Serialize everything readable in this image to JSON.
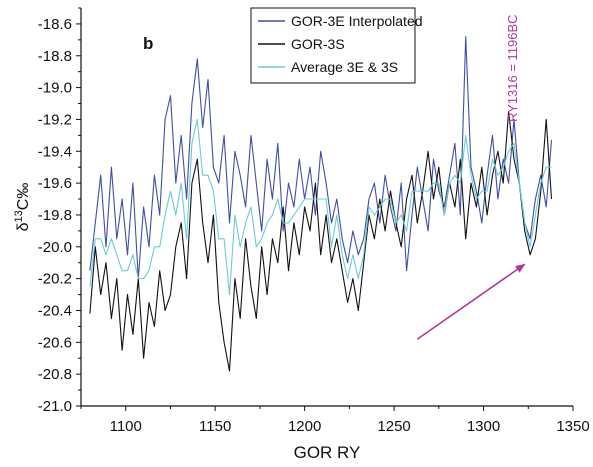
{
  "chart_data": {
    "type": "line",
    "panel_label": "b",
    "xlabel": "GOR RY",
    "ylabel": "δ13C‰",
    "ylabel_parts": {
      "delta": "δ",
      "superscript": "13",
      "rest": "C‰"
    },
    "xlim": [
      1075,
      1350
    ],
    "ylim": [
      -21.0,
      -18.5
    ],
    "x_ticks": [
      1100,
      1150,
      1200,
      1250,
      1300,
      1350
    ],
    "y_ticks": [
      -18.6,
      -18.8,
      -19.0,
      -19.2,
      -19.4,
      -19.6,
      -19.8,
      -20.0,
      -20.2,
      -20.4,
      -20.6,
      -20.8,
      -21.0
    ],
    "grid": false,
    "legend_position": "top-center",
    "annotation": {
      "text": "RY1316 = 1196BC",
      "x": 1316,
      "color": "#b0399a"
    },
    "arrow": {
      "from": [
        1263,
        -20.58
      ],
      "to": [
        1323,
        -20.11
      ],
      "color": "#b0399a"
    },
    "series": [
      {
        "name": "GOR-3E Interpolated",
        "color": "#3f4fa8",
        "x": [
          1080,
          1083,
          1086,
          1089,
          1092,
          1095,
          1098,
          1101,
          1104,
          1107,
          1110,
          1113,
          1116,
          1119,
          1122,
          1125,
          1128,
          1131,
          1134,
          1137,
          1140,
          1143,
          1146,
          1149,
          1152,
          1155,
          1158,
          1161,
          1164,
          1167,
          1170,
          1173,
          1176,
          1179,
          1182,
          1185,
          1188,
          1191,
          1194,
          1197,
          1200,
          1203,
          1206,
          1209,
          1212,
          1215,
          1218,
          1221,
          1224,
          1227,
          1230,
          1233,
          1236,
          1239,
          1242,
          1245,
          1248,
          1251,
          1254,
          1257,
          1260,
          1263,
          1266,
          1269,
          1272,
          1275,
          1278,
          1281,
          1284,
          1287,
          1290,
          1293,
          1296,
          1299,
          1302,
          1305,
          1308,
          1311,
          1314,
          1317,
          1320,
          1323,
          1326,
          1329,
          1332,
          1335,
          1338
        ],
        "values": [
          -20.15,
          -19.85,
          -19.55,
          -20.0,
          -19.5,
          -19.95,
          -19.7,
          -20.05,
          -19.6,
          -20.2,
          -19.75,
          -20.0,
          -19.55,
          -19.8,
          -19.2,
          -19.05,
          -19.6,
          -19.3,
          -19.7,
          -19.1,
          -18.82,
          -19.25,
          -18.95,
          -19.5,
          -19.6,
          -19.3,
          -19.85,
          -19.4,
          -19.55,
          -19.75,
          -19.3,
          -19.6,
          -19.9,
          -19.45,
          -19.7,
          -19.35,
          -19.9,
          -19.6,
          -19.75,
          -19.45,
          -19.7,
          -19.5,
          -19.8,
          -19.4,
          -19.6,
          -19.85,
          -19.7,
          -19.95,
          -20.1,
          -19.9,
          -20.05,
          -19.95,
          -19.7,
          -19.6,
          -19.85,
          -19.55,
          -19.75,
          -19.9,
          -19.6,
          -20.15,
          -19.8,
          -19.5,
          -19.7,
          -19.9,
          -19.45,
          -19.65,
          -19.75,
          -19.55,
          -19.35,
          -19.8,
          -18.68,
          -19.5,
          -19.65,
          -19.85,
          -19.55,
          -19.3,
          -19.7,
          -19.45,
          -19.6,
          -19.2,
          -19.6,
          -19.85,
          -19.95,
          -19.7,
          -19.55,
          -19.75,
          -19.33
        ]
      },
      {
        "name": "GOR-3S",
        "color": "#111111",
        "x": [
          1080,
          1083,
          1086,
          1089,
          1092,
          1095,
          1098,
          1101,
          1104,
          1107,
          1110,
          1113,
          1116,
          1119,
          1122,
          1125,
          1128,
          1131,
          1134,
          1137,
          1140,
          1143,
          1146,
          1149,
          1152,
          1155,
          1158,
          1161,
          1164,
          1167,
          1170,
          1173,
          1176,
          1179,
          1182,
          1185,
          1188,
          1191,
          1194,
          1197,
          1200,
          1203,
          1206,
          1209,
          1212,
          1215,
          1218,
          1221,
          1224,
          1227,
          1230,
          1233,
          1236,
          1239,
          1242,
          1245,
          1248,
          1251,
          1254,
          1257,
          1260,
          1263,
          1266,
          1269,
          1272,
          1275,
          1278,
          1281,
          1284,
          1287,
          1290,
          1293,
          1296,
          1299,
          1302,
          1305,
          1308,
          1311,
          1314,
          1317,
          1320,
          1323,
          1326,
          1329,
          1332,
          1335,
          1338
        ],
        "values": [
          -20.42,
          -20.0,
          -20.3,
          -20.1,
          -20.45,
          -20.2,
          -20.65,
          -20.3,
          -20.55,
          -20.2,
          -20.7,
          -20.35,
          -20.5,
          -20.15,
          -20.4,
          -20.3,
          -20.0,
          -19.85,
          -20.2,
          -19.6,
          -19.45,
          -19.85,
          -20.1,
          -19.8,
          -20.35,
          -20.6,
          -20.78,
          -20.2,
          -20.45,
          -19.95,
          -20.25,
          -20.45,
          -20.0,
          -20.3,
          -19.95,
          -20.1,
          -19.75,
          -20.15,
          -19.85,
          -20.05,
          -19.75,
          -19.9,
          -19.6,
          -20.05,
          -19.8,
          -20.1,
          -19.95,
          -20.15,
          -20.35,
          -20.2,
          -20.4,
          -20.1,
          -19.8,
          -19.95,
          -19.7,
          -19.9,
          -19.65,
          -19.85,
          -20.0,
          -19.7,
          -19.55,
          -19.85,
          -19.65,
          -19.4,
          -19.7,
          -19.5,
          -19.8,
          -19.6,
          -19.75,
          -19.45,
          -19.95,
          -19.6,
          -19.75,
          -19.5,
          -19.8,
          -19.55,
          -19.4,
          -19.6,
          -19.15,
          -19.45,
          -19.6,
          -19.9,
          -20.05,
          -19.95,
          -19.65,
          -19.2,
          -19.7
        ]
      },
      {
        "name": "Average 3E & 3S",
        "color": "#6ecad6",
        "x": [
          1080,
          1083,
          1086,
          1089,
          1092,
          1095,
          1098,
          1101,
          1104,
          1107,
          1110,
          1113,
          1116,
          1119,
          1122,
          1125,
          1128,
          1131,
          1134,
          1137,
          1140,
          1143,
          1146,
          1149,
          1152,
          1155,
          1158,
          1161,
          1164,
          1167,
          1170,
          1173,
          1176,
          1179,
          1182,
          1185,
          1188,
          1191,
          1194,
          1197,
          1200,
          1203,
          1206,
          1209,
          1212,
          1215,
          1218,
          1221,
          1224,
          1227,
          1230,
          1233,
          1236,
          1239,
          1242,
          1245,
          1248,
          1251,
          1254,
          1257,
          1260,
          1263,
          1266,
          1269,
          1272,
          1275,
          1278,
          1281,
          1284,
          1287,
          1290,
          1293,
          1296,
          1299,
          1302,
          1305,
          1308,
          1311,
          1314,
          1317,
          1320,
          1323,
          1326,
          1329,
          1332,
          1335,
          1338
        ],
        "values": [
          -20.25,
          -19.95,
          -19.95,
          -20.05,
          -19.95,
          -20.05,
          -20.15,
          -20.15,
          -20.05,
          -20.2,
          -20.2,
          -20.15,
          -20.0,
          -20.0,
          -19.8,
          -19.65,
          -19.8,
          -19.6,
          -19.95,
          -19.35,
          -19.2,
          -19.55,
          -19.55,
          -19.65,
          -19.95,
          -19.95,
          -20.3,
          -19.8,
          -20.0,
          -19.85,
          -19.75,
          -20.0,
          -19.95,
          -19.85,
          -19.8,
          -19.7,
          -19.85,
          -19.85,
          -19.8,
          -19.75,
          -19.7,
          -19.7,
          -19.7,
          -19.7,
          -19.7,
          -20.0,
          -19.8,
          -20.05,
          -20.2,
          -20.05,
          -20.2,
          -20.05,
          -19.75,
          -19.8,
          -19.75,
          -19.7,
          -19.7,
          -19.85,
          -19.8,
          -19.9,
          -19.65,
          -19.65,
          -19.65,
          -19.65,
          -19.6,
          -19.6,
          -19.8,
          -19.6,
          -19.55,
          -19.6,
          -19.3,
          -19.55,
          -19.7,
          -19.65,
          -19.65,
          -19.45,
          -19.55,
          -19.5,
          -19.4,
          -19.35,
          -19.6,
          -19.85,
          -20.0,
          -19.8,
          -19.6,
          -19.5,
          -19.5
        ]
      }
    ]
  }
}
